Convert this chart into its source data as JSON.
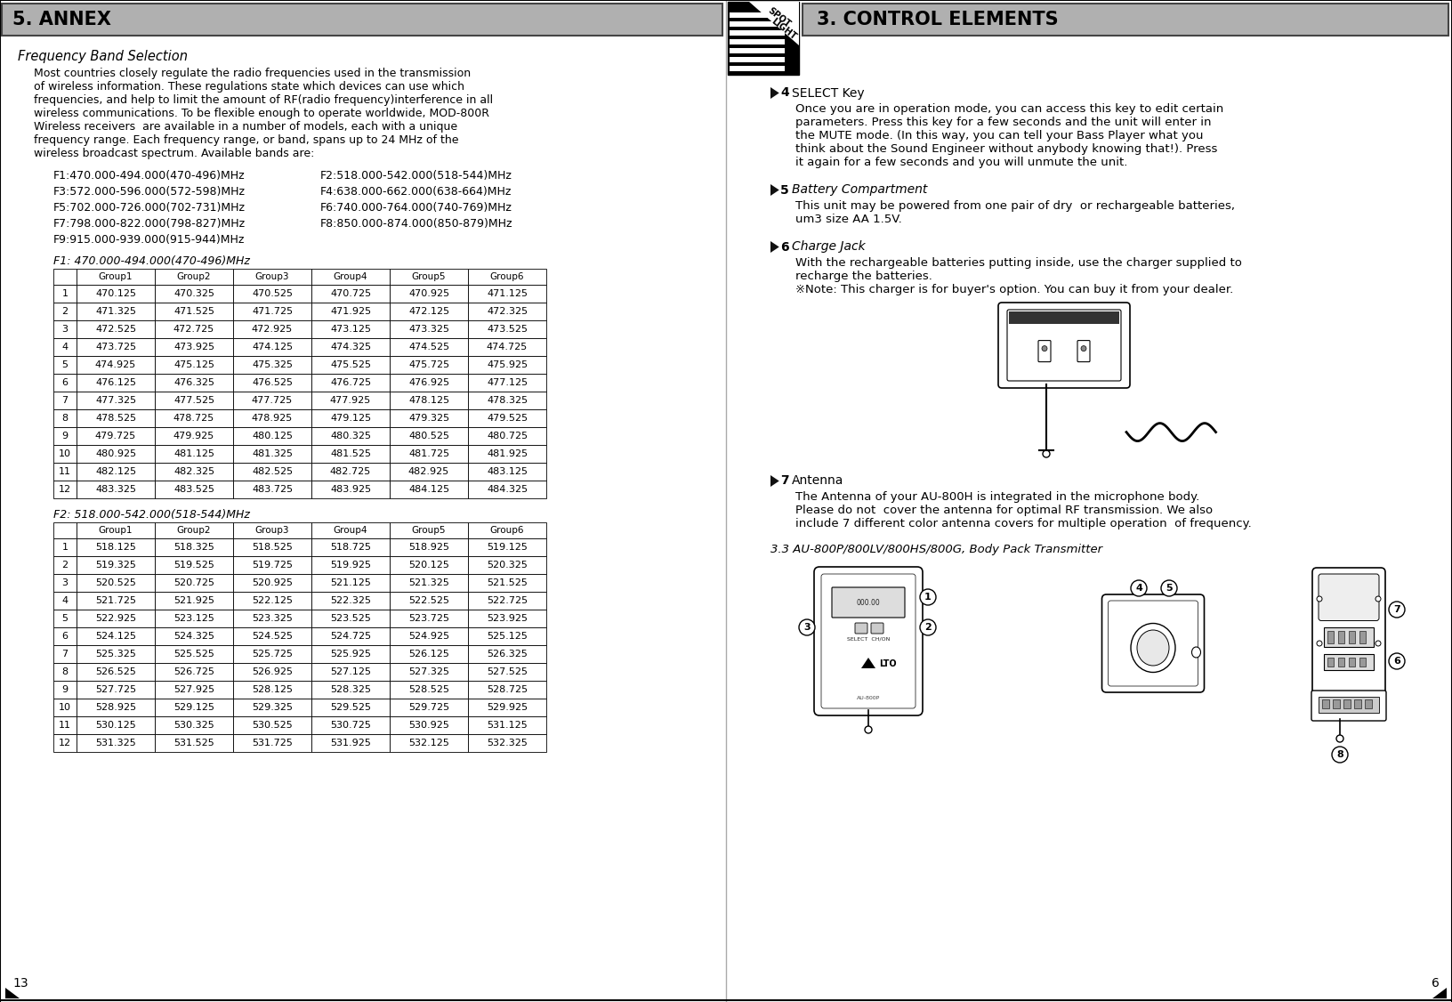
{
  "bg_color": "#ffffff",
  "left_header": "5. ANNEX",
  "right_header": "3. CONTROL ELEMENTS",
  "header_bg": "#b0b0b0",
  "freq_band_title": "Frequency Band Selection",
  "freq_band_body_lines": [
    "Most countries closely regulate the radio frequencies used in the transmission",
    "of wireless information. These regulations state which devices can use which",
    "frequencies, and help to limit the amount of RF(radio frequency)interference in all",
    "wireless communications. To be flexible enough to operate worldwide, MOD-800R",
    "Wireless receivers  are available in a number of models, each with a unique",
    "frequency range. Each frequency range, or band, spans up to 24 MHz of the",
    "wireless broadcast spectrum. Available bands are:"
  ],
  "freq_bands_left": [
    "F1:470.000-494.000(470-496)MHz",
    "F3:572.000-596.000(572-598)MHz",
    "F5:702.000-726.000(702-731)MHz",
    "F7:798.000-822.000(798-827)MHz",
    "F9:915.000-939.000(915-944)MHz"
  ],
  "freq_bands_right": [
    "F2:518.000-542.000(518-544)MHz",
    "F4:638.000-662.000(638-664)MHz",
    "F6:740.000-764.000(740-769)MHz",
    "F8:850.000-874.000(850-879)MHz",
    ""
  ],
  "table1_title": "F1: 470.000-494.000(470-496)MHz",
  "table1_headers": [
    "",
    "Group1",
    "Group2",
    "Group3",
    "Group4",
    "Group5",
    "Group6"
  ],
  "table1_data": [
    [
      "1",
      "470.125",
      "470.325",
      "470.525",
      "470.725",
      "470.925",
      "471.125"
    ],
    [
      "2",
      "471.325",
      "471.525",
      "471.725",
      "471.925",
      "472.125",
      "472.325"
    ],
    [
      "3",
      "472.525",
      "472.725",
      "472.925",
      "473.125",
      "473.325",
      "473.525"
    ],
    [
      "4",
      "473.725",
      "473.925",
      "474.125",
      "474.325",
      "474.525",
      "474.725"
    ],
    [
      "5",
      "474.925",
      "475.125",
      "475.325",
      "475.525",
      "475.725",
      "475.925"
    ],
    [
      "6",
      "476.125",
      "476.325",
      "476.525",
      "476.725",
      "476.925",
      "477.125"
    ],
    [
      "7",
      "477.325",
      "477.525",
      "477.725",
      "477.925",
      "478.125",
      "478.325"
    ],
    [
      "8",
      "478.525",
      "478.725",
      "478.925",
      "479.125",
      "479.325",
      "479.525"
    ],
    [
      "9",
      "479.725",
      "479.925",
      "480.125",
      "480.325",
      "480.525",
      "480.725"
    ],
    [
      "10",
      "480.925",
      "481.125",
      "481.325",
      "481.525",
      "481.725",
      "481.925"
    ],
    [
      "11",
      "482.125",
      "482.325",
      "482.525",
      "482.725",
      "482.925",
      "483.125"
    ],
    [
      "12",
      "483.325",
      "483.525",
      "483.725",
      "483.925",
      "484.125",
      "484.325"
    ]
  ],
  "table2_title": "F2: 518.000-542.000(518-544)MHz",
  "table2_headers": [
    "",
    "Group1",
    "Group2",
    "Group3",
    "Group4",
    "Group5",
    "Group6"
  ],
  "table2_data": [
    [
      "1",
      "518.125",
      "518.325",
      "518.525",
      "518.725",
      "518.925",
      "519.125"
    ],
    [
      "2",
      "519.325",
      "519.525",
      "519.725",
      "519.925",
      "520.125",
      "520.325"
    ],
    [
      "3",
      "520.525",
      "520.725",
      "520.925",
      "521.125",
      "521.325",
      "521.525"
    ],
    [
      "4",
      "521.725",
      "521.925",
      "522.125",
      "522.325",
      "522.525",
      "522.725"
    ],
    [
      "5",
      "522.925",
      "523.125",
      "523.325",
      "523.525",
      "523.725",
      "523.925"
    ],
    [
      "6",
      "524.125",
      "524.325",
      "524.525",
      "524.725",
      "524.925",
      "525.125"
    ],
    [
      "7",
      "525.325",
      "525.525",
      "525.725",
      "525.925",
      "526.125",
      "526.325"
    ],
    [
      "8",
      "526.525",
      "526.725",
      "526.925",
      "527.125",
      "527.325",
      "527.525"
    ],
    [
      "9",
      "527.725",
      "527.925",
      "528.125",
      "528.325",
      "528.525",
      "528.725"
    ],
    [
      "10",
      "528.925",
      "529.125",
      "529.325",
      "529.525",
      "529.725",
      "529.925"
    ],
    [
      "11",
      "530.125",
      "530.325",
      "530.525",
      "530.725",
      "530.925",
      "531.125"
    ],
    [
      "12",
      "531.325",
      "531.525",
      "531.725",
      "531.925",
      "532.125",
      "532.325"
    ]
  ],
  "select_key_num": "4",
  "select_key_title": "SELECT Key",
  "select_key_body_lines": [
    "Once you are in operation mode, you can access this key to edit certain",
    "parameters. Press this key for a few seconds and the unit will enter in",
    "the MUTE mode. (In this way, you can tell your Bass Player what you",
    "think about the Sound Engineer without anybody knowing that!). Press",
    "it again for a few seconds and you will unmute the unit."
  ],
  "battery_num": "5",
  "battery_title": "Battery Compartment",
  "battery_body_lines": [
    "This unit may be powered from one pair of dry  or rechargeable batteries,",
    "um3 size AA 1.5V."
  ],
  "charge_num": "6",
  "charge_title": "Charge Jack",
  "charge_body_lines": [
    "With the rechargeable batteries putting inside, use the charger supplied to",
    "recharge the batteries.",
    "※Note: This charger is for buyer's option. You can buy it from your dealer."
  ],
  "antenna_num": "7",
  "antenna_title": "Antenna",
  "antenna_body_lines": [
    "The Antenna of your AU-800H is integrated in the microphone body.",
    "Please do not  cover the antenna for optimal RF transmission. We also",
    "include 7 different color antenna covers for multiple operation  of frequency."
  ],
  "body_pack_title": "3.3 AU-800P/800LV/800HS/800G, Body Pack Transmitter",
  "page_left": "13",
  "page_right": "6"
}
